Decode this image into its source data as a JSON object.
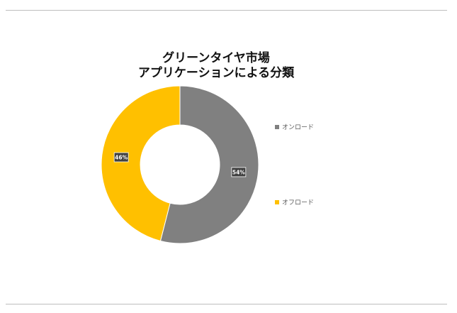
{
  "chart_data": {
    "type": "pie",
    "title": "グリーンタイヤ市場",
    "subtitle": "アプリケーションによる分類",
    "categories": [
      "オンロード",
      "オフロード"
    ],
    "values": [
      54,
      46
    ],
    "data_labels": [
      "54%",
      "46%"
    ],
    "colors": [
      "#808080",
      "#FFC000"
    ],
    "legend_position": "right"
  }
}
